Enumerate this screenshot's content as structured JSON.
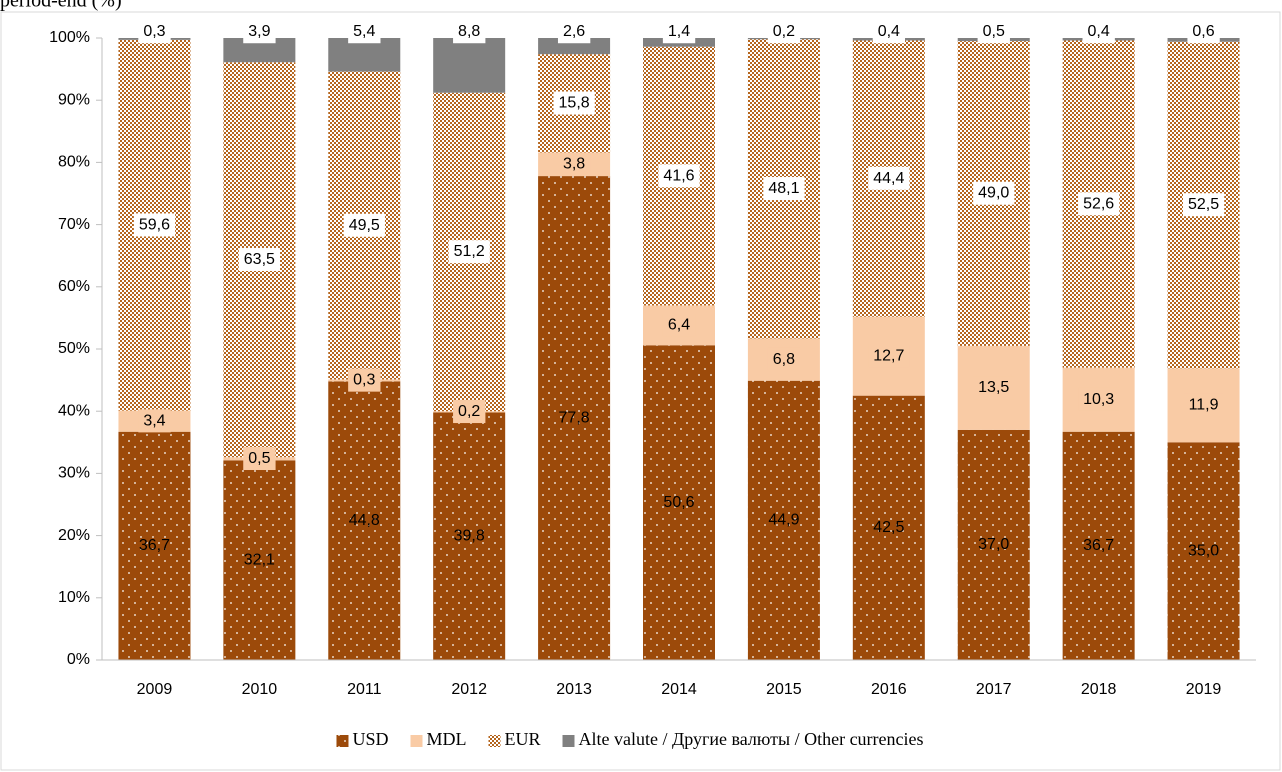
{
  "chart_data": {
    "type": "bar",
    "stacked": true,
    "title": "period-end (%)",
    "categories": [
      "2009",
      "2010",
      "2011",
      "2012",
      "2013",
      "2014",
      "2015",
      "2016",
      "2017",
      "2018",
      "2019"
    ],
    "series": [
      {
        "name": "USD",
        "color": "#9c4a0a",
        "values": [
          36.7,
          32.1,
          44.8,
          39.8,
          77.8,
          50.6,
          44.9,
          42.5,
          37.0,
          36.7,
          35.0
        ],
        "value_labels": [
          "36,7",
          "32,1",
          "44,8",
          "39,8",
          "77,8",
          "50,6",
          "44,9",
          "42,5",
          "37,0",
          "36,7",
          "35,0"
        ]
      },
      {
        "name": "MDL",
        "color": "#f9cba5",
        "values": [
          3.4,
          0.5,
          0.3,
          0.2,
          3.8,
          6.4,
          6.8,
          12.7,
          13.5,
          10.3,
          11.9
        ],
        "value_labels": [
          "3,4",
          "0,5",
          "0,3",
          "0,2",
          "3,8",
          "6,4",
          "6,8",
          "12,7",
          "13,5",
          "10,3",
          "11,9"
        ]
      },
      {
        "name": "EUR",
        "color": "#b5651d",
        "values": [
          59.6,
          63.5,
          49.5,
          51.2,
          15.8,
          41.6,
          48.1,
          44.4,
          49.0,
          52.6,
          52.5
        ],
        "value_labels": [
          "59,6",
          "63,5",
          "49,5",
          "51,2",
          "15,8",
          "41,6",
          "48,1",
          "44,4",
          "49,0",
          "52,6",
          "52,5"
        ]
      },
      {
        "name": "Alte valute / Другие валюты / Other currencies",
        "color": "#808080",
        "values": [
          0.3,
          3.9,
          5.4,
          8.8,
          2.6,
          1.4,
          0.2,
          0.4,
          0.5,
          0.4,
          0.6
        ],
        "value_labels": [
          "0,3",
          "3,9",
          "5,4",
          "8,8",
          "2,6",
          "1,4",
          "0,2",
          "0,4",
          "0,5",
          "0,4",
          "0,6"
        ]
      }
    ],
    "ylim": [
      0,
      100
    ],
    "yticks": [
      {
        "value": 0,
        "label": "0%"
      },
      {
        "value": 10,
        "label": "10%"
      },
      {
        "value": 20,
        "label": "20%"
      },
      {
        "value": 30,
        "label": "30%"
      },
      {
        "value": 40,
        "label": "40%"
      },
      {
        "value": 50,
        "label": "50%"
      },
      {
        "value": 60,
        "label": "60%"
      },
      {
        "value": 70,
        "label": "70%"
      },
      {
        "value": 80,
        "label": "80%"
      },
      {
        "value": 90,
        "label": "90%"
      },
      {
        "value": 100,
        "label": "100%"
      }
    ],
    "legend": "bottom"
  }
}
